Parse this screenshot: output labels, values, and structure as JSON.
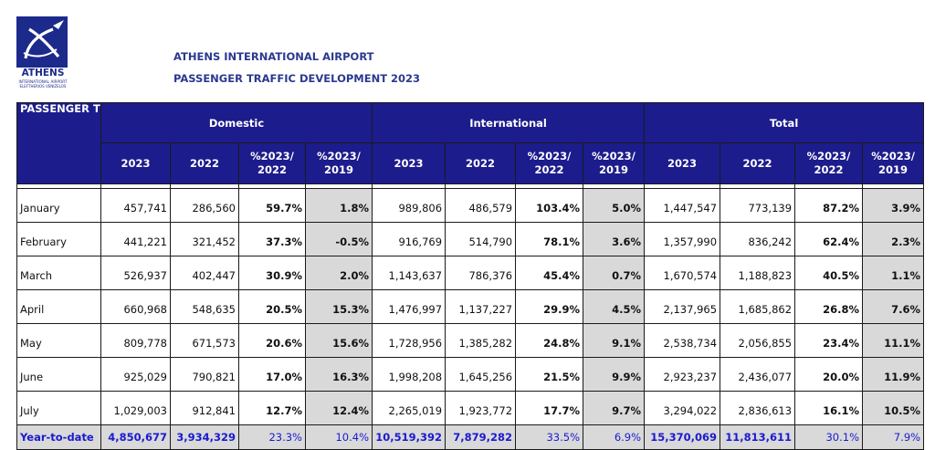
{
  "logo": {
    "icon": "aircraft-swoosh-logo",
    "name": "ATHENS",
    "subtitle": "INTERNATIONAL AIRPORT",
    "subtitle2": "ELEFTHERIOS VENIZELOS"
  },
  "header": {
    "line1": "ATHENS INTERNATIONAL AIRPORT",
    "line2": "PASSENGER TRAFFIC DEVELOPMENT 2023"
  },
  "table": {
    "corner_label": "PASSENGER TRAFFIC",
    "groups": [
      "Domestic",
      "International",
      "Total"
    ],
    "subcols": [
      "2023",
      "2022",
      "%2023/ 2022",
      "%2023/ 2019"
    ],
    "rows": [
      {
        "month": "January",
        "d": [
          "457,741",
          "286,560",
          "59.7%",
          "1.8%"
        ],
        "i": [
          "989,806",
          "486,579",
          "103.4%",
          "5.0%"
        ],
        "t": [
          "1,447,547",
          "773,139",
          "87.2%",
          "3.9%"
        ]
      },
      {
        "month": "February",
        "d": [
          "441,221",
          "321,452",
          "37.3%",
          "-0.5%"
        ],
        "i": [
          "916,769",
          "514,790",
          "78.1%",
          "3.6%"
        ],
        "t": [
          "1,357,990",
          "836,242",
          "62.4%",
          "2.3%"
        ]
      },
      {
        "month": "March",
        "d": [
          "526,937",
          "402,447",
          "30.9%",
          "2.0%"
        ],
        "i": [
          "1,143,637",
          "786,376",
          "45.4%",
          "0.7%"
        ],
        "t": [
          "1,670,574",
          "1,188,823",
          "40.5%",
          "1.1%"
        ]
      },
      {
        "month": "April",
        "d": [
          "660,968",
          "548,635",
          "20.5%",
          "15.3%"
        ],
        "i": [
          "1,476,997",
          "1,137,227",
          "29.9%",
          "4.5%"
        ],
        "t": [
          "2,137,965",
          "1,685,862",
          "26.8%",
          "7.6%"
        ]
      },
      {
        "month": "May",
        "d": [
          "809,778",
          "671,573",
          "20.6%",
          "15.6%"
        ],
        "i": [
          "1,728,956",
          "1,385,282",
          "24.8%",
          "9.1%"
        ],
        "t": [
          "2,538,734",
          "2,056,855",
          "23.4%",
          "11.1%"
        ]
      },
      {
        "month": "June",
        "d": [
          "925,029",
          "790,821",
          "17.0%",
          "16.3%"
        ],
        "i": [
          "1,998,208",
          "1,645,256",
          "21.5%",
          "9.9%"
        ],
        "t": [
          "2,923,237",
          "2,436,077",
          "20.0%",
          "11.9%"
        ]
      },
      {
        "month": "July",
        "d": [
          "1,029,003",
          "912,841",
          "12.7%",
          "12.4%"
        ],
        "i": [
          "2,265,019",
          "1,923,772",
          "17.7%",
          "9.7%"
        ],
        "t": [
          "3,294,022",
          "2,836,613",
          "16.1%",
          "10.5%"
        ]
      }
    ],
    "ytd": {
      "label": "Year-to-date",
      "d": [
        "4,850,677",
        "3,934,329",
        "23.3%",
        "10.4%"
      ],
      "i": [
        "10,519,392",
        "7,879,282",
        "33.5%",
        "6.9%"
      ],
      "t": [
        "15,370,069",
        "11,813,611",
        "30.1%",
        "7.9%"
      ]
    },
    "colors": {
      "header_bg": "#1c1c8c",
      "header_text": "#ffffff",
      "shade": "#d9d9d9",
      "ytd_text": "#1a1ad0",
      "title": "#2b3990"
    }
  }
}
